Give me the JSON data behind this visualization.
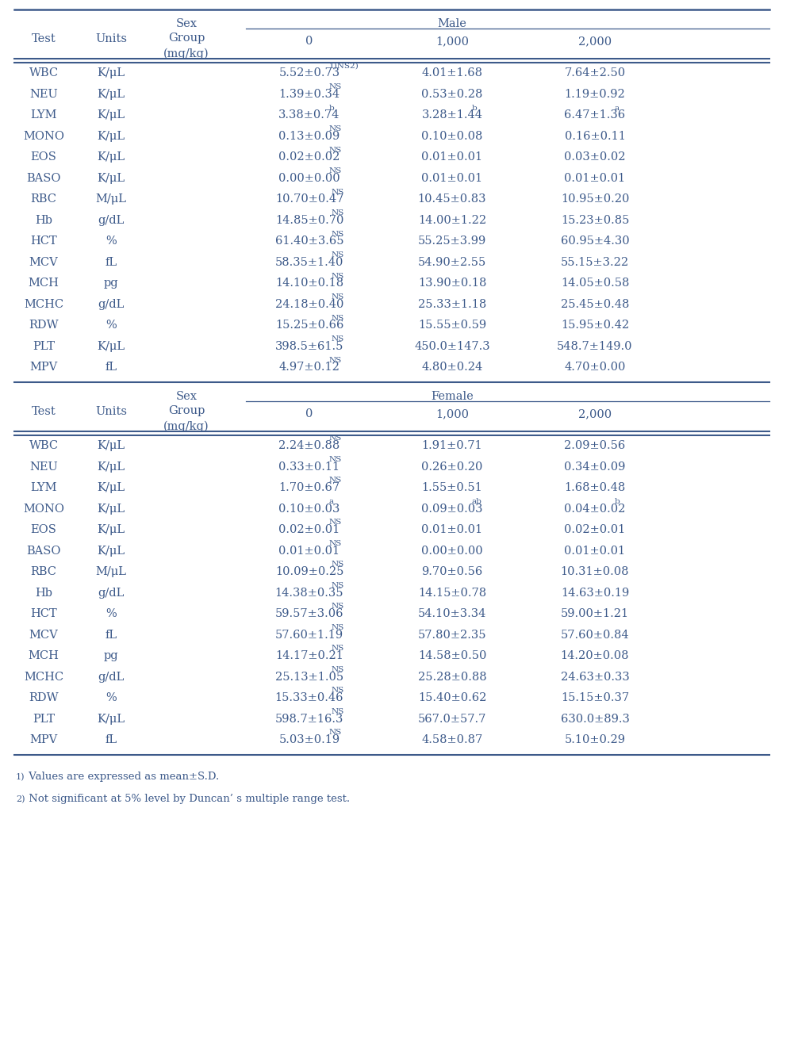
{
  "male_rows": [
    [
      "WBC",
      "K/μL",
      "5.52±0.73",
      "1)NS2)",
      "4.01±1.68",
      "",
      "7.64±2.50",
      ""
    ],
    [
      "NEU",
      "K/μL",
      "1.39±0.34",
      "NS",
      "0.53±0.28",
      "",
      "1.19±0.92",
      ""
    ],
    [
      "LYM",
      "K/μL",
      "3.38±0.74",
      "b",
      "3.28±1.44",
      "b",
      "6.47±1.36",
      "a"
    ],
    [
      "MONO",
      "K/μL",
      "0.13±0.09",
      "NS",
      "0.10±0.08",
      "",
      "0.16±0.11",
      ""
    ],
    [
      "EOS",
      "K/μL",
      "0.02±0.02",
      "NS",
      "0.01±0.01",
      "",
      "0.03±0.02",
      ""
    ],
    [
      "BASO",
      "K/μL",
      "0.00±0.00",
      "NS",
      "0.01±0.01",
      "",
      "0.01±0.01",
      ""
    ],
    [
      "RBC",
      "M/μL",
      "10.70±0.47",
      "NS",
      "10.45±0.83",
      "",
      "10.95±0.20",
      ""
    ],
    [
      "Hb",
      "g/dL",
      "14.85±0.70",
      "NS",
      "14.00±1.22",
      "",
      "15.23±0.85",
      ""
    ],
    [
      "HCT",
      "%",
      "61.40±3.65",
      "NS",
      "55.25±3.99",
      "",
      "60.95±4.30",
      ""
    ],
    [
      "MCV",
      "fL",
      "58.35±1.40",
      "NS",
      "54.90±2.55",
      "",
      "55.15±3.22",
      ""
    ],
    [
      "MCH",
      "pg",
      "14.10±0.18",
      "NS",
      "13.90±0.18",
      "",
      "14.05±0.58",
      ""
    ],
    [
      "MCHC",
      "g/dL",
      "24.18±0.40",
      "NS",
      "25.33±1.18",
      "",
      "25.45±0.48",
      ""
    ],
    [
      "RDW",
      "%",
      "15.25±0.66",
      "NS",
      "15.55±0.59",
      "",
      "15.95±0.42",
      ""
    ],
    [
      "PLT",
      "K/μL",
      "398.5±61.5",
      "NS",
      "450.0±147.3",
      "",
      "548.7±149.0",
      ""
    ],
    [
      "MPV",
      "fL",
      "4.97±0.12",
      "NS",
      "4.80±0.24",
      "",
      "4.70±0.00",
      ""
    ]
  ],
  "female_rows": [
    [
      "WBC",
      "K/μL",
      "2.24±0.88",
      "NS",
      "1.91±0.71",
      "",
      "2.09±0.56",
      ""
    ],
    [
      "NEU",
      "K/μL",
      "0.33±0.11",
      "NS",
      "0.26±0.20",
      "",
      "0.34±0.09",
      ""
    ],
    [
      "LYM",
      "K/μL",
      "1.70±0.67",
      "NS",
      "1.55±0.51",
      "",
      "1.68±0.48",
      ""
    ],
    [
      "MONO",
      "K/μL",
      "0.10±0.03",
      "a",
      "0.09±0.03",
      "ab",
      "0.04±0.02",
      "b"
    ],
    [
      "EOS",
      "K/μL",
      "0.02±0.01",
      "NS",
      "0.01±0.01",
      "",
      "0.02±0.01",
      ""
    ],
    [
      "BASO",
      "K/μL",
      "0.01±0.01",
      "NS",
      "0.00±0.00",
      "",
      "0.01±0.01",
      ""
    ],
    [
      "RBC",
      "M/μL",
      "10.09±0.25",
      "NS",
      "9.70±0.56",
      "",
      "10.31±0.08",
      ""
    ],
    [
      "Hb",
      "g/dL",
      "14.38±0.35",
      "NS",
      "14.15±0.78",
      "",
      "14.63±0.19",
      ""
    ],
    [
      "HCT",
      "%",
      "59.57±3.06",
      "NS",
      "54.10±3.34",
      "",
      "59.00±1.21",
      ""
    ],
    [
      "MCV",
      "fL",
      "57.60±1.19",
      "NS",
      "57.80±2.35",
      "",
      "57.60±0.84",
      ""
    ],
    [
      "MCH",
      "pg",
      "14.17±0.21",
      "NS",
      "14.58±0.50",
      "",
      "14.20±0.08",
      ""
    ],
    [
      "MCHC",
      "g/dL",
      "25.13±1.05",
      "NS",
      "25.28±0.88",
      "",
      "24.63±0.33",
      ""
    ],
    [
      "RDW",
      "%",
      "15.33±0.46",
      "NS",
      "15.40±0.62",
      "",
      "15.15±0.37",
      ""
    ],
    [
      "PLT",
      "K/μL",
      "598.7±16.3",
      "NS",
      "567.0±57.7",
      "",
      "630.0±89.3",
      ""
    ],
    [
      "MPV",
      "fL",
      "5.03±0.19",
      "NS",
      "4.58±0.87",
      "",
      "5.10±0.29",
      ""
    ]
  ],
  "text_color": "#3d5a8a",
  "line_color": "#3d5a8a",
  "bg_color": "#ffffff",
  "font_size": 10.5,
  "small_font_size": 7.5,
  "footnote_font_size": 9.5
}
